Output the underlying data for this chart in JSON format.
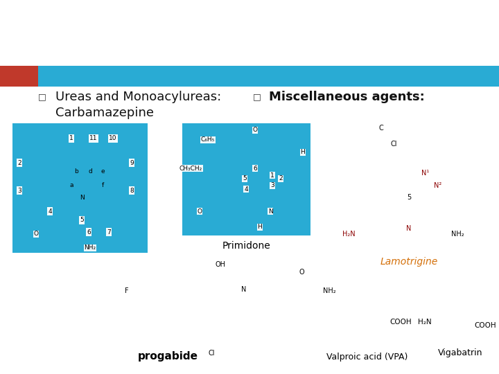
{
  "bg_color": "#ffffff",
  "header_bar_color": "#29ABD4",
  "red_accent_color": "#C0392B",
  "bullet1_text_line1": "Ureas and Monoacylureas:",
  "bullet1_text_line2": "Carbamazepine",
  "bullet2_text": "Miscellaneous agents:",
  "carbamazepine_bg": "#29ABD4",
  "primidone_bg": "#29ABD4",
  "primidone_label": "Primidone",
  "lamotrigine_label": "Lamotrigine",
  "lamotrigine_label_color": "#D4700A",
  "progabide_label": "progabide",
  "vpa_label": "Valproic acid (VPA)",
  "vigabatrin_label": "Vigabatrin",
  "font_size_bullet": 13,
  "font_size_label": 9,
  "font_size_progabide": 11
}
